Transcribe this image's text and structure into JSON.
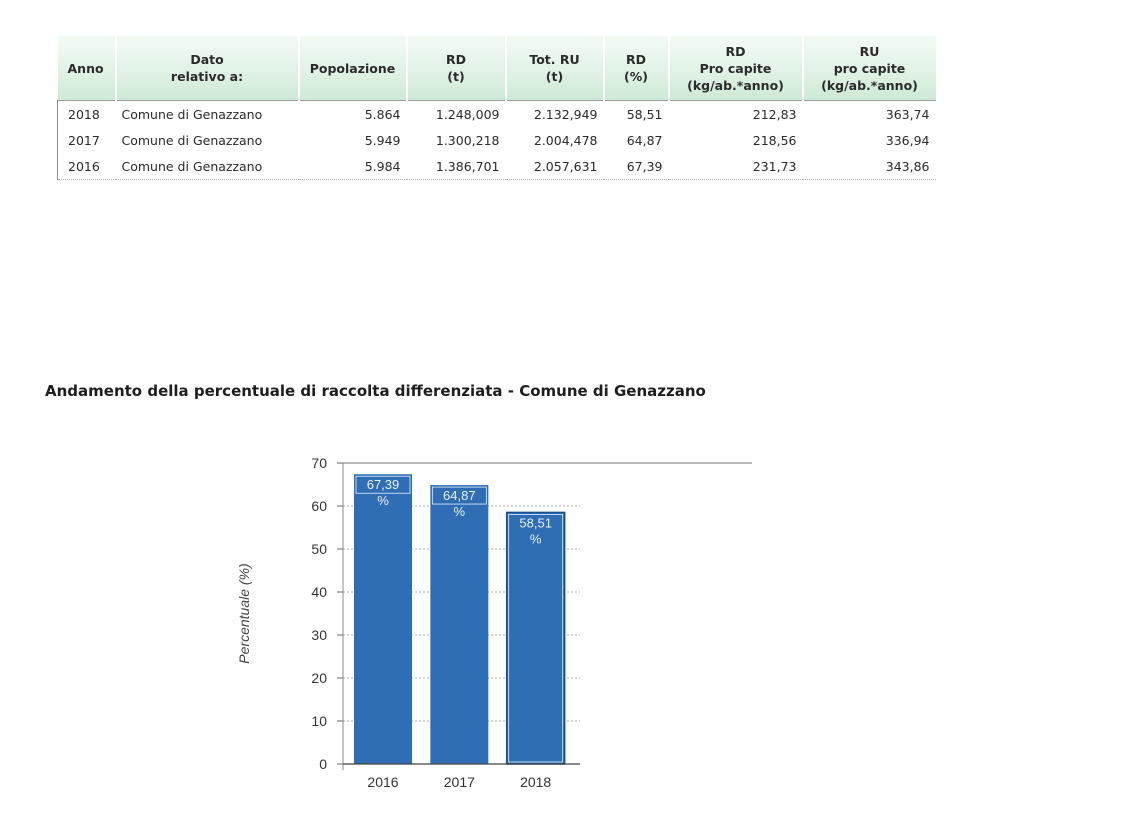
{
  "table": {
    "headers": [
      [
        "Anno"
      ],
      [
        "Dato",
        "relativo a:"
      ],
      [
        "Popolazione"
      ],
      [
        "RD",
        "(t)"
      ],
      [
        "Tot. RU",
        "(t)"
      ],
      [
        "RD",
        "(%)"
      ],
      [
        "RD",
        "Pro capite",
        "(kg/ab.*anno)"
      ],
      [
        "RU",
        "pro capite",
        "(kg/ab.*anno)"
      ]
    ],
    "rows": [
      [
        "2018",
        "Comune di Genazzano",
        "5.864",
        "1.248,009",
        "2.132,949",
        "58,51",
        "212,83",
        "363,74"
      ],
      [
        "2017",
        "Comune di Genazzano",
        "5.949",
        "1.300,218",
        "2.004,478",
        "64,87",
        "218,56",
        "336,94"
      ],
      [
        "2016",
        "Comune di Genazzano",
        "5.984",
        "1.386,701",
        "2.057,631",
        "67,39",
        "231,73",
        "343,86"
      ]
    ]
  },
  "chart_title": "Andamento della percentuale di raccolta differenziata - Comune di Genazzano",
  "chart_data": {
    "type": "bar",
    "title": "Andamento della percentuale di raccolta differenziata - Comune di Genazzano",
    "categories": [
      "2016",
      "2017",
      "2018"
    ],
    "values": [
      67.39,
      64.87,
      58.51
    ],
    "data_labels": [
      "67,39 %",
      "64,87 %",
      "58,51 %"
    ],
    "xlabel": "",
    "ylabel": "Percentuale (%)",
    "ylim": [
      0,
      70
    ],
    "yticks": [
      "0",
      "10",
      "20",
      "30",
      "40",
      "50",
      "60",
      "70"
    ],
    "grid": true,
    "legend": "none",
    "bar_color": "#2f6db5",
    "bar_highlight_border": "#e8f0fa"
  }
}
